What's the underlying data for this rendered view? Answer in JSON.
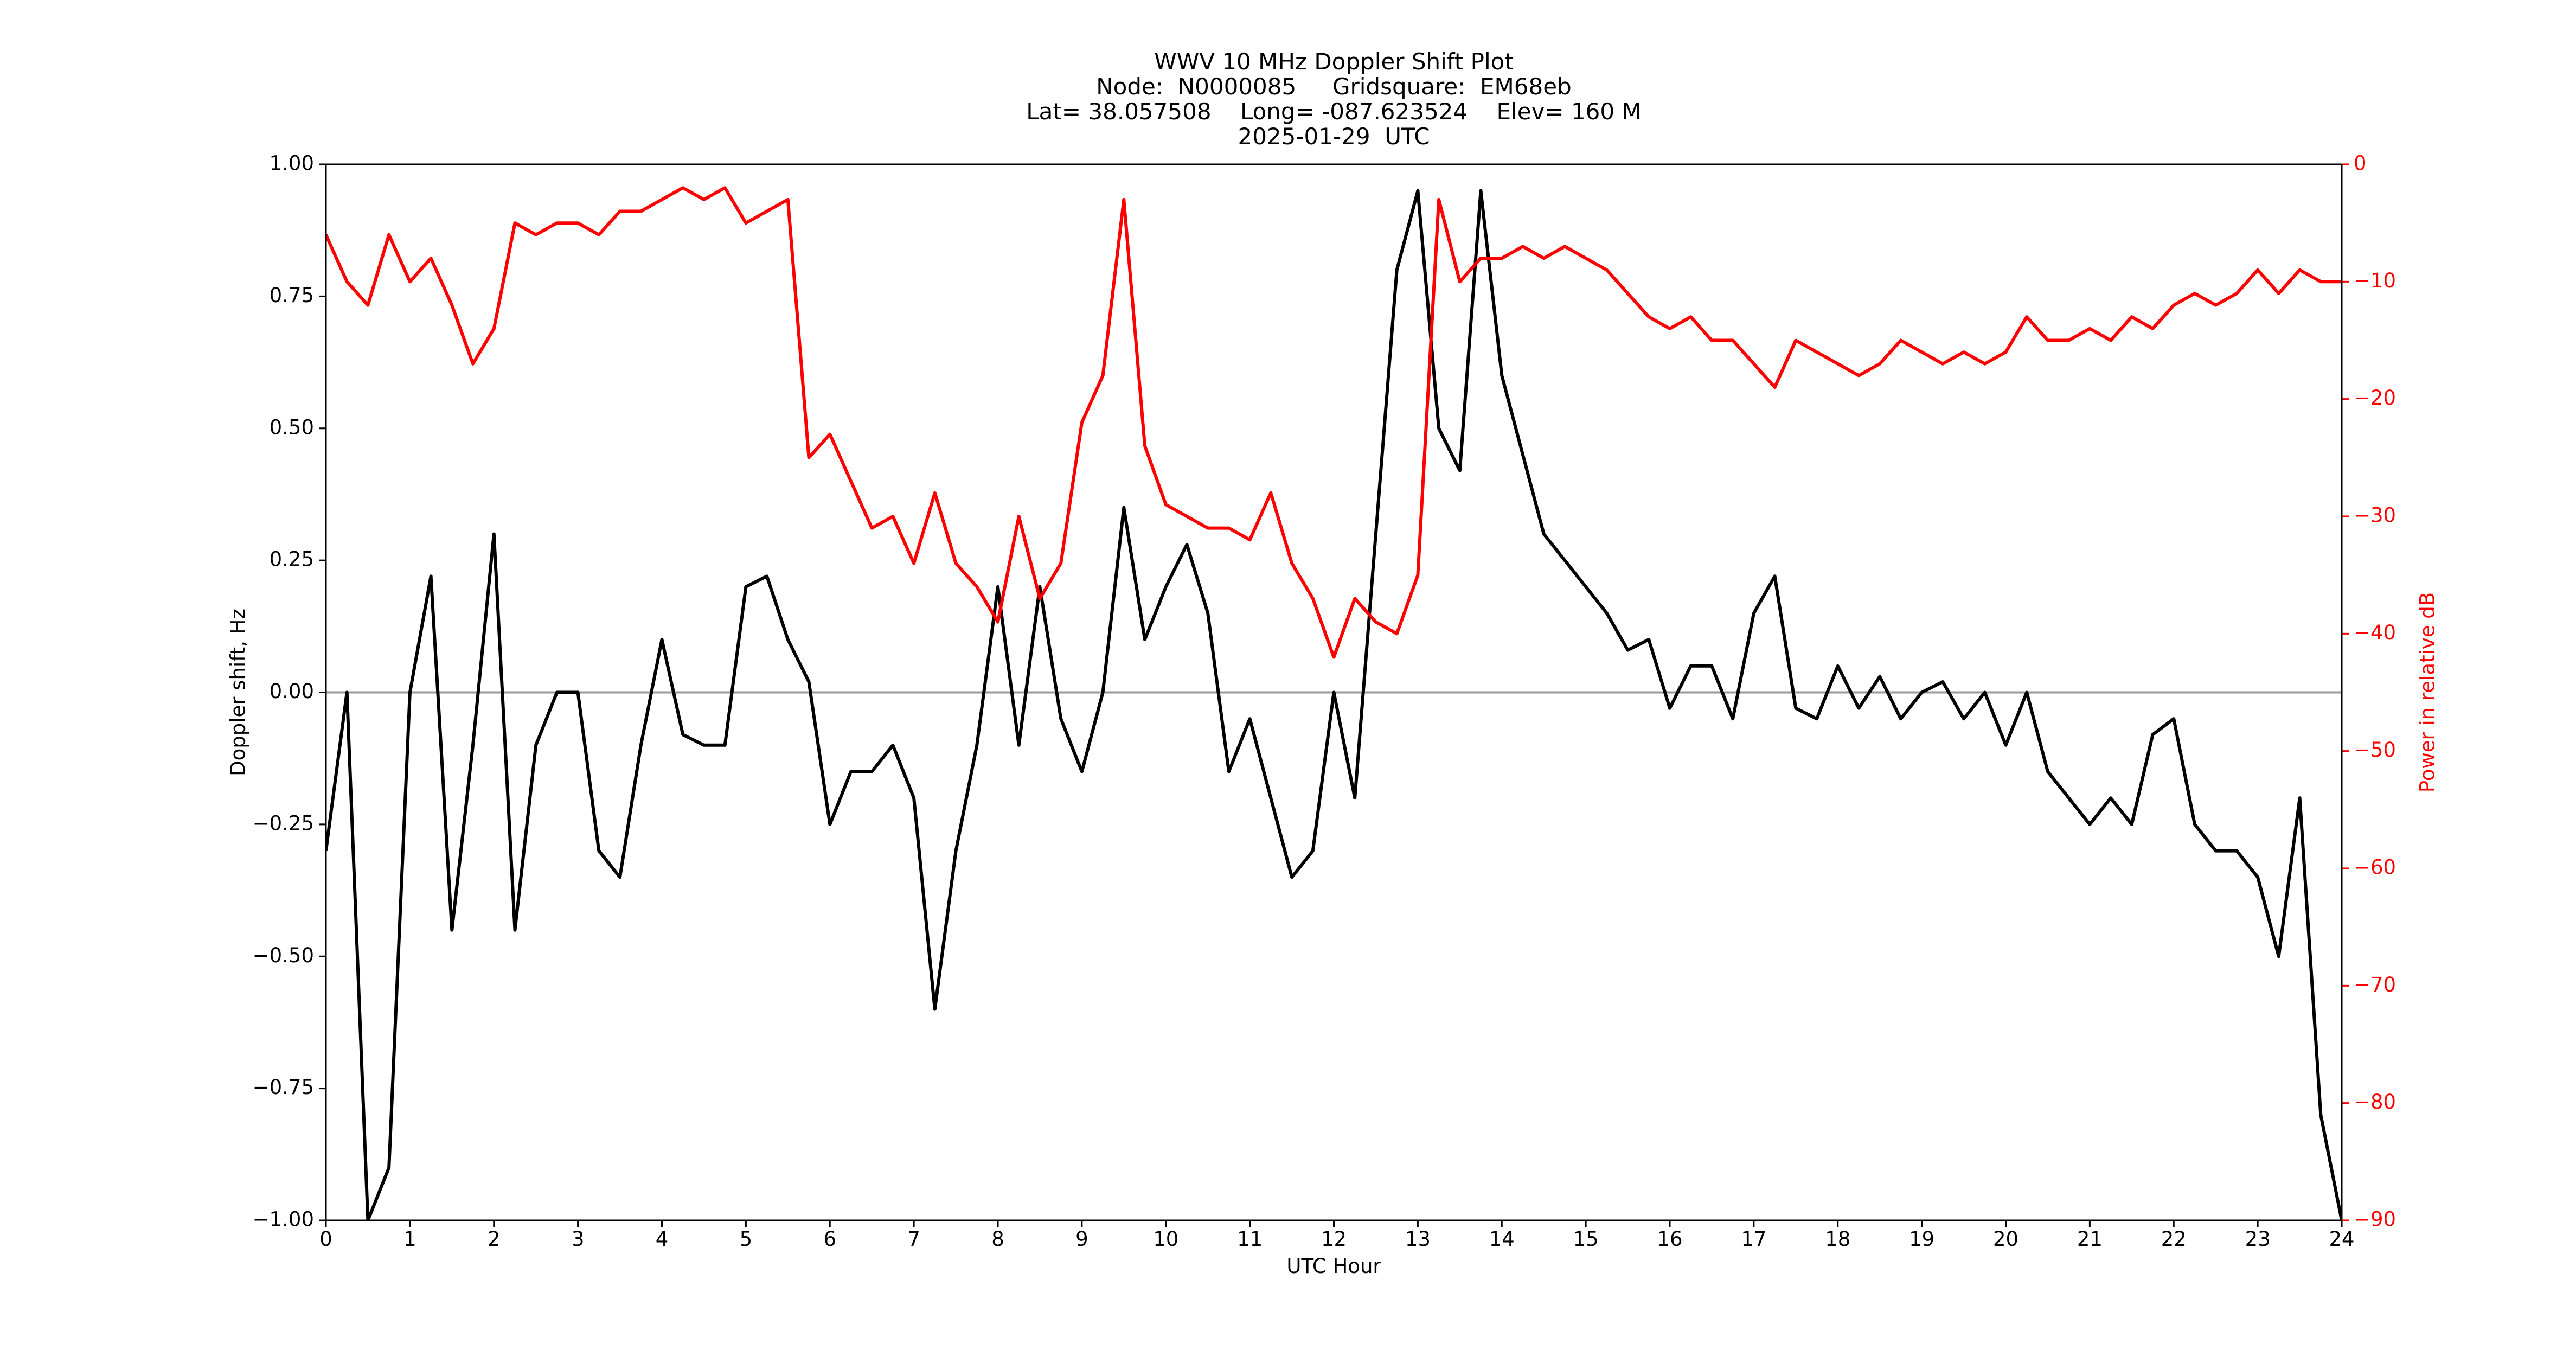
{
  "chart_data": {
    "type": "line",
    "title": [
      "WWV 10 MHz Doppler Shift Plot",
      "Node:  N0000085     Gridsquare:  EM68eb",
      "Lat= 38.057508    Long= -087.623524    Elev= 160 M",
      "2025-01-29  UTC"
    ],
    "xlabel": "UTC Hour",
    "ylabel": "Doppler shift, Hz",
    "y2label": "Power in relative dB",
    "xlim": [
      0,
      24
    ],
    "xticks": [
      0,
      1,
      2,
      3,
      4,
      5,
      6,
      7,
      8,
      9,
      10,
      11,
      12,
      13,
      14,
      15,
      16,
      17,
      18,
      19,
      20,
      21,
      22,
      23,
      24
    ],
    "ylim": [
      -1,
      1
    ],
    "yticks": [
      {
        "value": -1,
        "label": "−1.00"
      },
      {
        "value": -0.75,
        "label": "−0.75"
      },
      {
        "value": -0.5,
        "label": "−0.50"
      },
      {
        "value": -0.25,
        "label": "−0.25"
      },
      {
        "value": 0,
        "label": "0.00"
      },
      {
        "value": 0.25,
        "label": "0.25"
      },
      {
        "value": 0.5,
        "label": "0.50"
      },
      {
        "value": 0.75,
        "label": "0.75"
      },
      {
        "value": 1,
        "label": "1.00"
      }
    ],
    "y2lim": [
      -90,
      0
    ],
    "y2ticks": [
      {
        "value": -90,
        "label": "−90"
      },
      {
        "value": -80,
        "label": "−80"
      },
      {
        "value": -70,
        "label": "−70"
      },
      {
        "value": -60,
        "label": "−60"
      },
      {
        "value": -50,
        "label": "−50"
      },
      {
        "value": -40,
        "label": "−40"
      },
      {
        "value": -30,
        "label": "−30"
      },
      {
        "value": -20,
        "label": "−20"
      },
      {
        "value": -10,
        "label": "−10"
      },
      0
    ],
    "hline": {
      "value": 0,
      "color": "#999999"
    },
    "x": [
      0,
      0.25,
      0.5,
      0.75,
      1,
      1.25,
      1.5,
      1.75,
      2,
      2.25,
      2.5,
      2.75,
      3,
      3.25,
      3.5,
      3.75,
      4,
      4.25,
      4.5,
      4.75,
      5,
      5.25,
      5.5,
      5.75,
      6,
      6.25,
      6.5,
      6.75,
      7,
      7.25,
      7.5,
      7.75,
      8,
      8.25,
      8.5,
      8.75,
      9,
      9.25,
      9.5,
      9.75,
      10,
      10.25,
      10.5,
      10.75,
      11,
      11.25,
      11.5,
      11.75,
      12,
      12.25,
      12.5,
      12.75,
      13,
      13.25,
      13.5,
      13.75,
      14,
      14.25,
      14.5,
      14.75,
      15,
      15.25,
      15.5,
      15.75,
      16,
      16.25,
      16.5,
      16.75,
      17,
      17.25,
      17.5,
      17.75,
      18,
      18.25,
      18.5,
      18.75,
      19,
      19.25,
      19.5,
      19.75,
      20,
      20.25,
      20.5,
      20.75,
      21,
      21.25,
      21.5,
      21.75,
      22,
      22.25,
      22.5,
      22.75,
      23,
      23.25,
      23.5,
      23.75,
      24
    ],
    "series": [
      {
        "name": "Doppler shift",
        "color": "#000000",
        "axis": "y",
        "values": [
          -0.3,
          0.0,
          -1.0,
          -0.9,
          0.0,
          0.22,
          -0.45,
          -0.1,
          0.3,
          -0.45,
          -0.1,
          0.0,
          0.0,
          -0.3,
          -0.35,
          -0.1,
          0.1,
          -0.08,
          -0.1,
          -0.1,
          0.2,
          0.22,
          0.1,
          0.02,
          -0.25,
          -0.15,
          -0.15,
          -0.1,
          -0.2,
          -0.6,
          -0.3,
          -0.1,
          0.2,
          -0.1,
          0.2,
          -0.05,
          -0.15,
          0.0,
          0.35,
          0.1,
          0.2,
          0.28,
          0.15,
          -0.15,
          -0.05,
          -0.2,
          -0.35,
          -0.3,
          0.0,
          -0.2,
          0.3,
          0.8,
          0.95,
          0.5,
          0.42,
          0.95,
          0.6,
          0.45,
          0.3,
          0.25,
          0.2,
          0.15,
          0.08,
          0.1,
          -0.03,
          0.05,
          0.05,
          -0.05,
          0.15,
          0.22,
          -0.03,
          -0.05,
          0.05,
          -0.03,
          0.03,
          -0.05,
          0.0,
          0.02,
          -0.05,
          0.0,
          -0.1,
          0.0,
          -0.15,
          -0.2,
          -0.25,
          -0.2,
          -0.25,
          -0.08,
          -0.05,
          -0.25,
          -0.3,
          -0.3,
          -0.35,
          -0.5,
          -0.2,
          -0.8,
          -1.0
        ]
      },
      {
        "name": "Power",
        "color": "#ff0000",
        "axis": "y2",
        "values": [
          -6,
          -10,
          -12,
          -6,
          -10,
          -8,
          -12,
          -17,
          -14,
          -5,
          -6,
          -5,
          -5,
          -6,
          -4,
          -4,
          -3,
          -2,
          -3,
          -2,
          -5,
          -4,
          -3,
          -25,
          -23,
          -27,
          -31,
          -30,
          -34,
          -28,
          -34,
          -36,
          -39,
          -30,
          -37,
          -34,
          -22,
          -18,
          -3,
          -24,
          -29,
          -30,
          -31,
          -31,
          -32,
          -28,
          -34,
          -37,
          -42,
          -37,
          -39,
          -40,
          -35,
          -3,
          -10,
          -8,
          -8,
          -7,
          -8,
          -7,
          -8,
          -9,
          -11,
          -13,
          -14,
          -13,
          -15,
          -15,
          -17,
          -19,
          -15,
          -16,
          -17,
          -18,
          -17,
          -15,
          -16,
          -17,
          -16,
          -17,
          -16,
          -13,
          -15,
          -15,
          -14,
          -15,
          -13,
          -14,
          -12,
          -11,
          -12,
          -11,
          -9,
          -11,
          -9,
          -10,
          -10
        ]
      }
    ]
  }
}
